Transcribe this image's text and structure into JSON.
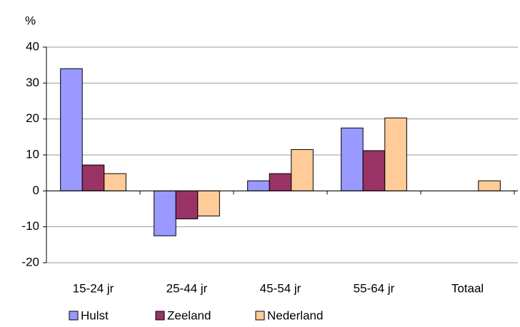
{
  "chart_data": {
    "type": "bar",
    "y_axis_label": "%",
    "categories": [
      "15-24 jr",
      "25-44 jr",
      "45-54 jr",
      "55-64 jr",
      "Totaal"
    ],
    "series": [
      {
        "name": "Hulst",
        "color": "#9999ff",
        "values": [
          34,
          -12.5,
          2.8,
          17.5,
          0
        ]
      },
      {
        "name": "Zeeland",
        "color": "#993366",
        "values": [
          7.2,
          -7.8,
          4.8,
          11.2,
          0
        ]
      },
      {
        "name": "Nederland",
        "color": "#ffcc99",
        "values": [
          4.8,
          -7,
          11.5,
          20.3,
          2.8
        ]
      }
    ],
    "ylim": [
      -20,
      40
    ],
    "yticks": [
      -20,
      -10,
      0,
      10,
      20,
      30,
      40
    ],
    "grid": true,
    "legend": "bottom"
  }
}
